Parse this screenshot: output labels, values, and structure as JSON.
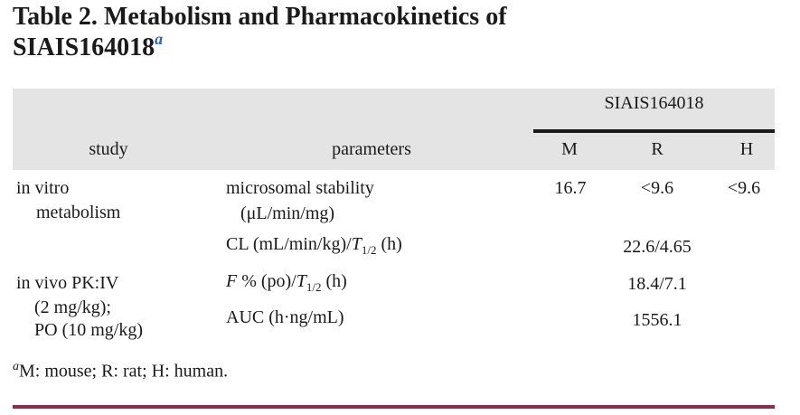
{
  "colors": {
    "accent_rule": "#912B4B",
    "header_bg": "#E4E4E4",
    "marker_blue": "#2B5FC0",
    "text": "#1A1A1A"
  },
  "title": {
    "line1": "Table 2. Metabolism and Pharmacokinetics of",
    "line2": "SIAIS164018",
    "footnote_marker": "a"
  },
  "table": {
    "group_header": "SIAIS164018",
    "columns": {
      "study": "study",
      "parameters": "parameters",
      "m": "M",
      "r": "R",
      "h": "H"
    },
    "rows": {
      "invitro": {
        "study_line1": "in vitro",
        "study_line2": "metabolism",
        "param_line1": "microsomal stability",
        "param_line2": "(μL/min/mg)",
        "m": "16.7",
        "r": "<9.6",
        "h": "<9.6"
      },
      "cl": {
        "param_prefix": "CL (mL/min/kg)/",
        "param_italic": "T",
        "param_sub": "1/2",
        "param_suffix": " (h)",
        "value": "22.6/4.65"
      },
      "invivo": {
        "study_line1": "in vivo PK:IV",
        "study_line2": "(2 mg/kg);",
        "study_line3": "PO (10 mg/kg)",
        "f_param_italic1": "F",
        "f_param_mid": " % (po)/",
        "f_param_italic2": "T",
        "f_param_sub": "1/2",
        "f_param_suffix": " (h)",
        "f_value": "18.4/7.1",
        "auc_param": "AUC (h·ng/mL)",
        "auc_value": "1556.1"
      }
    }
  },
  "footnote": {
    "marker": "a",
    "text": "M: mouse; R: rat; H: human."
  }
}
